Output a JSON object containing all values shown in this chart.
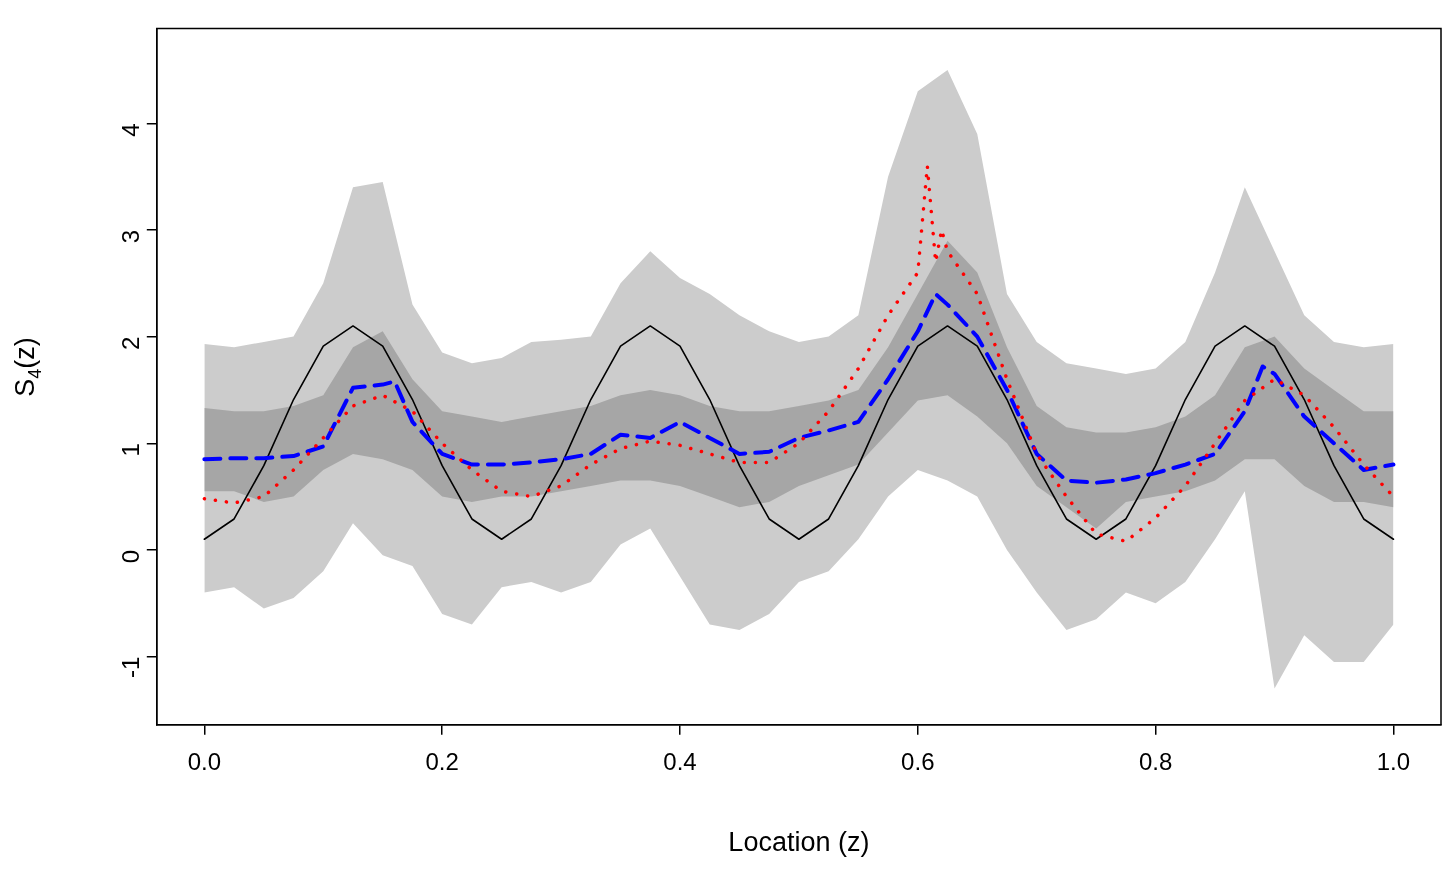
{
  "chart_data": {
    "type": "line",
    "xlabel": "Location (z)",
    "ylabel": "S$_{4}$(z)",
    "xlim": [
      -0.04,
      1.04
    ],
    "ylim": [
      -1.64,
      4.89
    ],
    "xticks": [
      {
        "value": 0,
        "label": "0.0"
      },
      {
        "value": 0.2,
        "label": "0.2"
      },
      {
        "value": 0.4,
        "label": "0.4"
      },
      {
        "value": 0.6,
        "label": "0.6"
      },
      {
        "value": 0.8,
        "label": "0.8"
      },
      {
        "value": 1,
        "label": "1.0"
      }
    ],
    "yticks": [
      -1,
      0,
      1,
      2,
      3,
      4
    ],
    "grid": false,
    "legend": false,
    "x": [
      0,
      0.025,
      0.05,
      0.075,
      0.1,
      0.125,
      0.15,
      0.175,
      0.2,
      0.225,
      0.25,
      0.275,
      0.3,
      0.325,
      0.35,
      0.375,
      0.4,
      0.425,
      0.45,
      0.475,
      0.5,
      0.525,
      0.55,
      0.575,
      0.6,
      0.625,
      0.65,
      0.675,
      0.7,
      0.725,
      0.75,
      0.775,
      0.8,
      0.825,
      0.85,
      0.875,
      0.9,
      0.925,
      0.95,
      0.975,
      1
    ],
    "series": [
      {
        "color": "#cccccc",
        "values": [
          null,
          null,
          null,
          null,
          null,
          null,
          null,
          null,
          null,
          null,
          null,
          null,
          null,
          null,
          null,
          null,
          null,
          null,
          null,
          null,
          null,
          null,
          null,
          null,
          null,
          null,
          null,
          null,
          null,
          null,
          null,
          null,
          null,
          null,
          null,
          null,
          null,
          null,
          null,
          null,
          null
        ],
        "lower": [
          -0.4,
          -0.35,
          -0.55,
          -0.45,
          -0.2,
          0.25,
          -0.05,
          -0.15,
          -0.6,
          -0.7,
          -0.35,
          -0.3,
          -0.4,
          -0.3,
          0.05,
          0.2,
          -0.25,
          -0.7,
          -0.75,
          -0.6,
          -0.3,
          -0.2,
          0.1,
          0.5,
          0.75,
          0.65,
          0.5,
          0,
          -0.4,
          -0.75,
          -0.65,
          -0.4,
          -0.5,
          -0.3,
          0.1,
          0.55,
          -1.3,
          -0.8,
          -1.05,
          -1.05,
          -0.7
        ],
        "upper": [
          1.93,
          1.9,
          1.95,
          2,
          2.5,
          3.4,
          3.45,
          2.3,
          1.85,
          1.75,
          1.8,
          1.95,
          1.97,
          2,
          2.5,
          2.8,
          2.55,
          2.4,
          2.2,
          2.05,
          1.95,
          2,
          2.2,
          3.5,
          4.3,
          4.5,
          3.9,
          2.4,
          1.95,
          1.75,
          1.7,
          1.65,
          1.7,
          1.95,
          2.6,
          3.4,
          2.8,
          2.2,
          1.95,
          1.9,
          1.93
        ]
      },
      {
        "color": "#a6a6a6",
        "values": [
          null,
          null,
          null,
          null,
          null,
          null,
          null,
          null,
          null,
          null,
          null,
          null,
          null,
          null,
          null,
          null,
          null,
          null,
          null,
          null,
          null,
          null,
          null,
          null,
          null,
          null,
          null,
          null,
          null,
          null,
          null,
          null,
          null,
          null,
          null,
          null,
          null,
          null,
          null,
          null,
          null
        ],
        "lower": [
          0.55,
          0.55,
          0.45,
          0.5,
          0.75,
          0.9,
          0.85,
          0.75,
          0.5,
          0.45,
          0.5,
          0.5,
          0.55,
          0.6,
          0.65,
          0.65,
          0.6,
          0.5,
          0.4,
          0.45,
          0.6,
          0.7,
          0.8,
          1.1,
          1.4,
          1.45,
          1.25,
          1,
          0.6,
          0.4,
          0.2,
          0.45,
          0.5,
          0.55,
          0.65,
          0.85,
          0.85,
          0.6,
          0.45,
          0.45,
          0.4
        ],
        "upper": [
          1.33,
          1.3,
          1.3,
          1.35,
          1.45,
          1.9,
          2.05,
          1.6,
          1.3,
          1.25,
          1.2,
          1.25,
          1.3,
          1.35,
          1.45,
          1.5,
          1.45,
          1.35,
          1.3,
          1.3,
          1.35,
          1.4,
          1.5,
          1.9,
          2.4,
          2.9,
          2.6,
          1.9,
          1.35,
          1.15,
          1.1,
          1.1,
          1.15,
          1.25,
          1.45,
          1.9,
          2,
          1.7,
          1.5,
          1.3,
          1.3
        ]
      },
      {
        "color": "#000000",
        "line_style": "solid",
        "values": [
          0.1,
          0.29,
          0.79,
          1.41,
          1.91,
          2.1,
          1.91,
          1.41,
          0.79,
          0.29,
          0.1,
          0.29,
          0.79,
          1.41,
          1.91,
          2.1,
          1.91,
          1.41,
          0.79,
          0.29,
          0.1,
          0.29,
          0.79,
          1.41,
          1.91,
          2.1,
          1.91,
          1.41,
          0.79,
          0.29,
          0.1,
          0.29,
          0.79,
          1.41,
          1.91,
          2.1,
          1.91,
          1.41,
          0.79,
          0.29,
          0.1
        ]
      },
      {
        "color": "#0000ff",
        "line_style": "dashed",
        "x": [
          0,
          0.025,
          0.05,
          0.075,
          0.1,
          0.125,
          0.15,
          0.16,
          0.175,
          0.2,
          0.225,
          0.25,
          0.275,
          0.3,
          0.325,
          0.35,
          0.375,
          0.4,
          0.425,
          0.45,
          0.475,
          0.5,
          0.525,
          0.55,
          0.575,
          0.6,
          0.615,
          0.625,
          0.65,
          0.675,
          0.7,
          0.725,
          0.75,
          0.775,
          0.8,
          0.825,
          0.85,
          0.875,
          0.89,
          0.9,
          0.925,
          0.95,
          0.975,
          1
        ],
        "values": [
          0.85,
          0.86,
          0.86,
          0.88,
          0.97,
          1.52,
          1.55,
          1.58,
          1.2,
          0.9,
          0.8,
          0.8,
          0.82,
          0.85,
          0.9,
          1.08,
          1.05,
          1.2,
          1.05,
          0.9,
          0.92,
          1.05,
          1.12,
          1.2,
          1.6,
          2.05,
          2.4,
          2.3,
          2,
          1.5,
          0.9,
          0.65,
          0.63,
          0.66,
          0.72,
          0.8,
          0.9,
          1.3,
          1.72,
          1.65,
          1.25,
          1,
          0.75,
          0.8
        ]
      },
      {
        "color": "#ff0000",
        "line_style": "dotted",
        "x": [
          0,
          0.025,
          0.05,
          0.075,
          0.1,
          0.125,
          0.15,
          0.175,
          0.2,
          0.225,
          0.25,
          0.275,
          0.3,
          0.325,
          0.35,
          0.375,
          0.4,
          0.425,
          0.45,
          0.475,
          0.5,
          0.525,
          0.55,
          0.575,
          0.6,
          0.608,
          0.615,
          0.62,
          0.625,
          0.65,
          0.675,
          0.7,
          0.725,
          0.75,
          0.775,
          0.8,
          0.825,
          0.85,
          0.875,
          0.9,
          0.925,
          0.95,
          0.975,
          1
        ],
        "values": [
          0.48,
          0.44,
          0.5,
          0.75,
          1.05,
          1.35,
          1.45,
          1.3,
          1,
          0.75,
          0.55,
          0.5,
          0.6,
          0.8,
          0.95,
          1.02,
          0.98,
          0.9,
          0.82,
          0.82,
          1,
          1.3,
          1.7,
          2.2,
          2.6,
          3.6,
          2.7,
          3,
          2.8,
          2.4,
          1.6,
          0.9,
          0.5,
          0.15,
          0.08,
          0.3,
          0.6,
          1,
          1.4,
          1.6,
          1.45,
          1.15,
          0.8,
          0.5
        ]
      }
    ]
  }
}
